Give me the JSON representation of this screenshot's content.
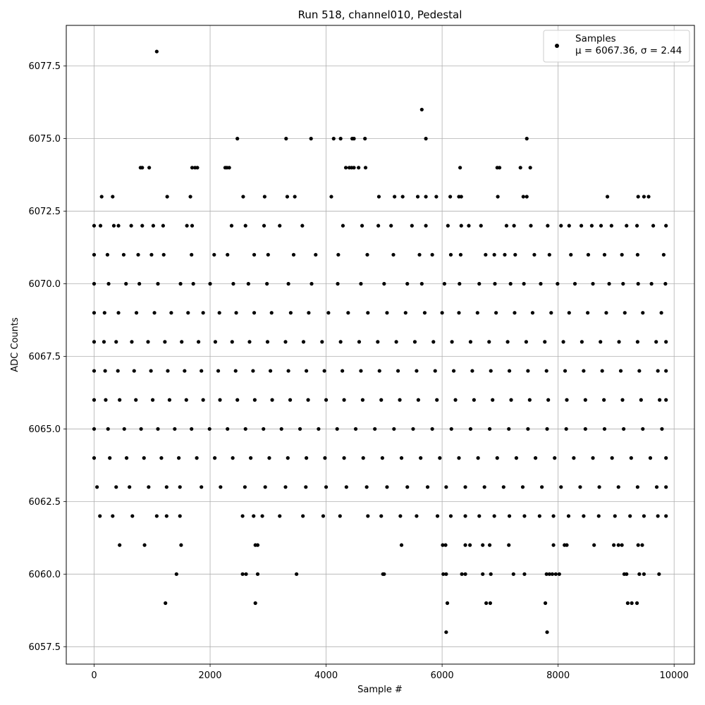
{
  "chart_data": {
    "type": "scatter",
    "title": "Run 518, channel010, Pedestal",
    "xlabel": "Sample #",
    "ylabel": "ADC Counts",
    "xlim": [
      -480,
      10350
    ],
    "ylim": [
      6056.9,
      6078.9
    ],
    "xticks": [
      0,
      2000,
      4000,
      6000,
      8000,
      10000
    ],
    "xtick_labels": [
      "0",
      "2000",
      "4000",
      "6000",
      "8000",
      "10000"
    ],
    "yticks": [
      6057.5,
      6060.0,
      6062.5,
      6065.0,
      6067.5,
      6070.0,
      6072.5,
      6075.0,
      6077.5
    ],
    "ytick_labels": [
      "6057.5",
      "6060.0",
      "6062.5",
      "6065.0",
      "6067.5",
      "6070.0",
      "6072.5",
      "6075.0",
      "6077.5"
    ],
    "grid": true,
    "legend_position": "upper right",
    "marker_color": "#000000",
    "series": [
      {
        "name": "Samples",
        "stats_label": "μ = 6067.36, σ = 2.44",
        "n_samples": 10000,
        "levels": [
          {
            "y": 6078,
            "x": [
              1080
            ]
          },
          {
            "y": 6076,
            "x": [
              5650
            ]
          },
          {
            "y": 6075,
            "x": [
              2470,
              3310,
              3740,
              4130,
              4250,
              4450,
              4480,
              4670,
              5720,
              7460
            ]
          },
          {
            "y": 6074,
            "x": [
              800,
              830,
              950,
              1690,
              1740,
              1780,
              2260,
              2290,
              2330,
              4340,
              4400,
              4440,
              4480,
              4560,
              4680,
              6310,
              6950,
              6990,
              7350,
              7520
            ]
          },
          {
            "y": 6073,
            "x": [
              130,
              320,
              1260,
              1660,
              2570,
              2940,
              3330,
              3460,
              4090,
              4910,
              5180,
              5320,
              5580,
              5720,
              5900,
              6140,
              6290,
              6330,
              6960,
              7400,
              7460,
              8850,
              9380,
              9480,
              9560
            ]
          },
          {
            "y": 6072,
            "x": [
              0,
              110,
              340,
              420,
              640,
              830,
              1020,
              1190,
              1600,
              1690,
              2370,
              2610,
              2930,
              3200,
              3590,
              4290,
              4620,
              4900,
              5120,
              5480,
              5720,
              6100,
              6330,
              6460,
              6670,
              7110,
              7240,
              7530,
              7820,
              8050,
              8190,
              8400,
              8580,
              8740,
              8920,
              9180,
              9360,
              9640,
              9860
            ]
          },
          {
            "y": 6071,
            "x": [
              0,
              230,
              510,
              760,
              990,
              1200,
              1680,
              2070,
              2300,
              2760,
              3000,
              3440,
              3820,
              4210,
              4710,
              5160,
              5610,
              5830,
              6150,
              6320,
              6750,
              6900,
              7080,
              7260,
              7590,
              7850,
              8220,
              8520,
              8800,
              9100,
              9370,
              9820
            ]
          },
          {
            "y": 6070,
            "x": [
              0,
              250,
              550,
              780,
              1100,
              1490,
              1710,
              2000,
              2400,
              2660,
              2980,
              3350,
              3750,
              4200,
              4600,
              5000,
              5400,
              5650,
              6040,
              6300,
              6640,
              6910,
              7180,
              7410,
              7700,
              7990,
              8290,
              8600,
              8880,
              9120,
              9380,
              9610,
              9850
            ]
          },
          {
            "y": 6069,
            "x": [
              0,
              180,
              420,
              730,
              1040,
              1330,
              1620,
              1880,
              2160,
              2450,
              2760,
              3060,
              3390,
              3700,
              4040,
              4380,
              4720,
              5050,
              5370,
              5700,
              6000,
              6290,
              6610,
              6930,
              7250,
              7560,
              7880,
              8190,
              8510,
              8830,
              9150,
              9460,
              9780
            ]
          },
          {
            "y": 6068,
            "x": [
              0,
              170,
              380,
              650,
              930,
              1220,
              1510,
              1800,
              2090,
              2380,
              2680,
              2990,
              3300,
              3610,
              3930,
              4250,
              4570,
              4890,
              5210,
              5530,
              5850,
              6170,
              6490,
              6810,
              7130,
              7450,
              7770,
              8090,
              8410,
              8730,
              9050,
              9370,
              9690,
              9860
            ]
          },
          {
            "y": 6067,
            "x": [
              0,
              190,
              410,
              690,
              980,
              1270,
              1560,
              1850,
              2140,
              2440,
              2740,
              3040,
              3350,
              3660,
              3970,
              4280,
              4600,
              4920,
              5240,
              5560,
              5880,
              6200,
              6520,
              6840,
              7160,
              7480,
              7800,
              8120,
              8440,
              8760,
              9080,
              9400,
              9720,
              9860
            ]
          },
          {
            "y": 6066,
            "x": [
              0,
              200,
              440,
              720,
              1010,
              1300,
              1590,
              1880,
              2170,
              2470,
              2770,
              3070,
              3380,
              3690,
              4000,
              4310,
              4630,
              4950,
              5270,
              5590,
              5910,
              6230,
              6550,
              6870,
              7190,
              7510,
              7830,
              8150,
              8470,
              8790,
              9110,
              9430,
              9750,
              9860
            ]
          },
          {
            "y": 6065,
            "x": [
              0,
              240,
              520,
              810,
              1100,
              1390,
              1680,
              1990,
              2300,
              2610,
              2920,
              3230,
              3550,
              3870,
              4190,
              4510,
              4840,
              5170,
              5500,
              5830,
              6160,
              6490,
              6820,
              7150,
              7480,
              7810,
              8140,
              8470,
              8800,
              9130,
              9460,
              9790
            ]
          },
          {
            "y": 6064,
            "x": [
              0,
              270,
              560,
              860,
              1160,
              1460,
              1770,
              2080,
              2390,
              2700,
              3020,
              3340,
              3660,
              3980,
              4310,
              4640,
              4970,
              5300,
              5630,
              5960,
              6290,
              6620,
              6950,
              7280,
              7610,
              7940,
              8270,
              8600,
              8930,
              9260,
              9590,
              9860
            ]
          },
          {
            "y": 6063,
            "x": [
              50,
              380,
              610,
              940,
              1250,
              1480,
              1850,
              2180,
              2600,
              2950,
              3300,
              3650,
              4000,
              4350,
              4700,
              5050,
              5400,
              5750,
              6070,
              6400,
              6730,
              7060,
              7390,
              7720,
              8050,
              8380,
              8710,
              9040,
              9370,
              9700,
              9860
            ]
          },
          {
            "y": 6062,
            "x": [
              100,
              320,
              660,
              1080,
              1250,
              1480,
              2560,
              2750,
              2900,
              3200,
              3600,
              3950,
              4240,
              4720,
              4950,
              5280,
              5560,
              5920,
              6150,
              6400,
              6640,
              6900,
              7160,
              7420,
              7680,
              7920,
              8180,
              8440,
              8700,
              8980,
              9240,
              9480,
              9720,
              9860
            ]
          },
          {
            "y": 6061,
            "x": [
              440,
              870,
              1500,
              2780,
              2820,
              5300,
              6010,
              6060,
              6400,
              6480,
              6700,
              6820,
              7150,
              7920,
              8110,
              8150,
              8620,
              8960,
              9040,
              9100,
              9380,
              9450
            ]
          },
          {
            "y": 6060,
            "x": [
              1420,
              2560,
              2620,
              2820,
              3490,
              4980,
              5000,
              6020,
              6070,
              6340,
              6400,
              6700,
              6840,
              7230,
              7420,
              7800,
              7850,
              7900,
              7960,
              8020,
              9140,
              9180,
              9400,
              9480,
              9740
            ]
          },
          {
            "y": 6059,
            "x": [
              1230,
              2780,
              6090,
              6760,
              6830,
              7780,
              9200,
              9270,
              9360
            ]
          },
          {
            "y": 6058,
            "x": [
              6070,
              7810
            ]
          }
        ]
      }
    ]
  }
}
